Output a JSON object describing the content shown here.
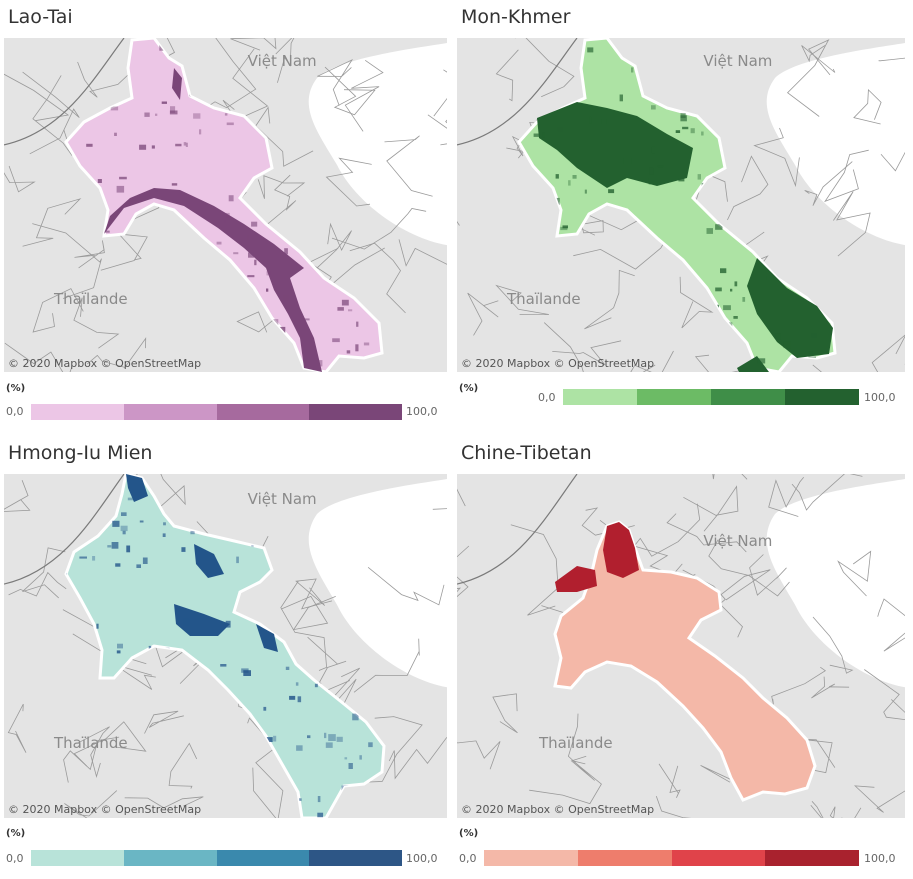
{
  "panels": [
    {
      "title": "Lao-Tai",
      "base_color": "#ecc6e6",
      "dark_color": "#7a4678",
      "legend": {
        "unit": "(%)",
        "min": "0,0",
        "max": "100,0",
        "colors": [
          "#ecc6e6",
          "#cc96c6",
          "#a66a9e",
          "#7a4678"
        ]
      },
      "labels": {
        "vietnam": "Việt Nam",
        "thailand": "Thaïlande"
      },
      "attribution": "© 2020 Mapbox © OpenStreetMap"
    },
    {
      "title": "Mon-Khmer",
      "base_color": "#ade3a4",
      "dark_color": "#23612f",
      "legend": {
        "unit": "(%)",
        "min": "0,0",
        "max": "100,0",
        "colors": [
          "#ade3a4",
          "#6cbb65",
          "#3f8e48",
          "#23612f"
        ]
      },
      "labels": {
        "vietnam": "Việt Nam",
        "thailand": "Thaïlande"
      },
      "attribution": "© 2020 Mapbox © OpenStreetMap"
    },
    {
      "title": "Hmong-Iu Mien",
      "base_color": "#b8e3d9",
      "dark_color": "#23558a",
      "legend": {
        "unit": "(%)",
        "min": "0,0",
        "max": "100,0",
        "colors": [
          "#b8e3d9",
          "#6ab6c4",
          "#3a89ad",
          "#2d5686"
        ]
      },
      "labels": {
        "vietnam": "Việt Nam",
        "thailand": "Thaïlande"
      },
      "attribution": "© 2020 Mapbox © OpenStreetMap"
    },
    {
      "title": "Chine-Tibetan",
      "base_color": "#f4b8a8",
      "dark_color": "#b11f2e",
      "legend": {
        "unit": "(%)",
        "min": "0,0",
        "max": "100,0",
        "colors": [
          "#f4b8a8",
          "#ee7d6c",
          "#e0434a",
          "#a9222e"
        ]
      },
      "labels": {
        "vietnam": "Việt Nam",
        "thailand": "Thaïlande"
      },
      "attribution": "© 2020 Mapbox © OpenStreetMap"
    }
  ]
}
